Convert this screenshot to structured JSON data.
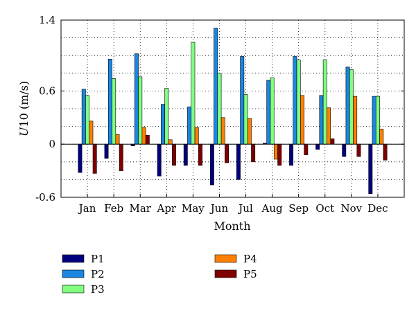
{
  "chart_data": {
    "type": "bar",
    "xlabel": "Month",
    "ylabel_italic": "U",
    "ylabel_rest": "10 (m/s)",
    "ylim": [
      -0.6,
      1.4
    ],
    "yticks": [
      -0.6,
      0,
      0.6,
      1.4
    ],
    "ytick_labels": [
      "-0.6",
      "0",
      "0.6",
      "1.4"
    ],
    "grid": true,
    "legend_position": "below",
    "categories": [
      "Jan",
      "Feb",
      "Mar",
      "Apr",
      "May",
      "Jun",
      "Jul",
      "Aug",
      "Sep",
      "Oct",
      "Nov",
      "Dec"
    ],
    "series": [
      {
        "name": "P1",
        "color": "#00007f",
        "values": [
          -0.32,
          -0.16,
          -0.02,
          -0.36,
          -0.24,
          -0.46,
          -0.4,
          0.01,
          -0.24,
          -0.06,
          -0.14,
          -0.56
        ]
      },
      {
        "name": "P2",
        "color": "#1a86e0",
        "values": [
          0.62,
          0.96,
          1.02,
          0.45,
          0.42,
          1.31,
          0.99,
          0.72,
          0.99,
          0.55,
          0.87,
          0.54
        ]
      },
      {
        "name": "P3",
        "color": "#80ff80",
        "values": [
          0.55,
          0.74,
          0.76,
          0.63,
          1.15,
          0.8,
          0.56,
          0.75,
          0.95,
          0.95,
          0.84,
          0.54
        ]
      },
      {
        "name": "P4",
        "color": "#ff7f00",
        "values": [
          0.26,
          0.11,
          0.19,
          0.05,
          0.19,
          0.3,
          0.29,
          -0.17,
          0.55,
          0.41,
          0.54,
          0.17
        ]
      },
      {
        "name": "P5",
        "color": "#7f0000",
        "values": [
          -0.33,
          -0.3,
          0.1,
          -0.24,
          -0.24,
          -0.21,
          -0.2,
          -0.24,
          -0.12,
          0.06,
          -0.14,
          -0.18
        ]
      }
    ]
  }
}
